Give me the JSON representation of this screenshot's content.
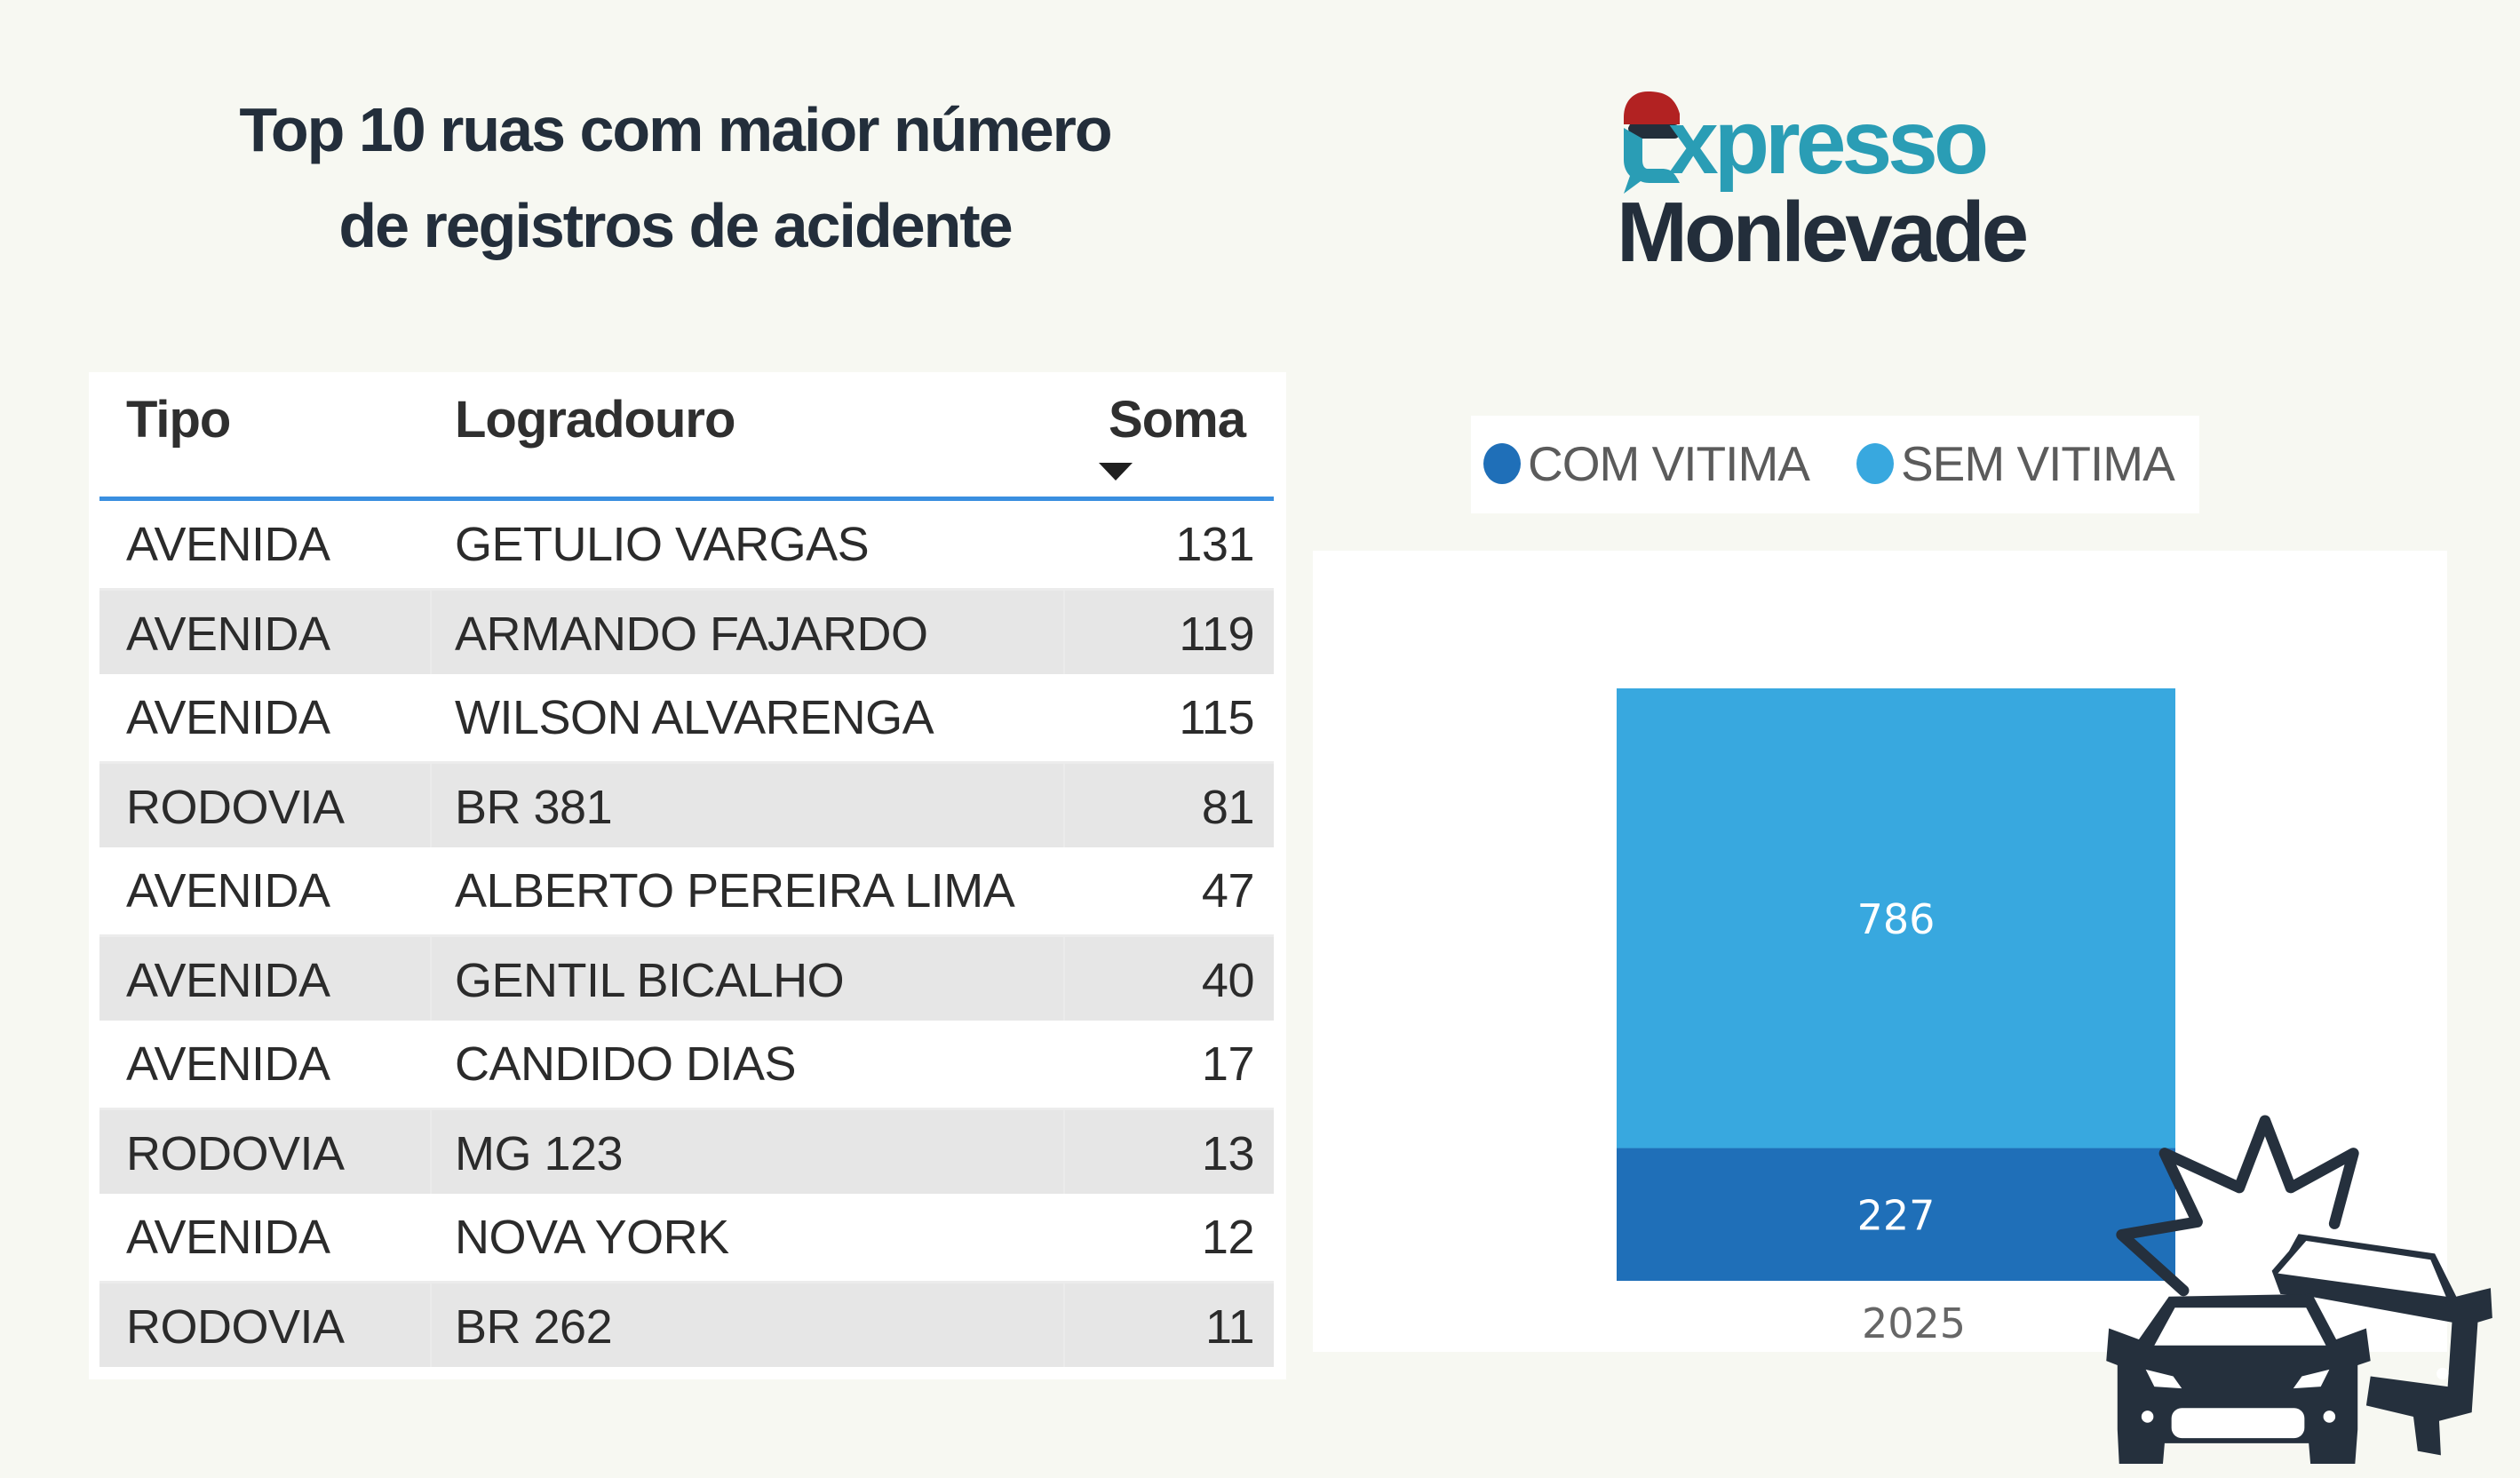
{
  "title": {
    "line1": "Top 10 ruas com maior número",
    "line2": "de registros de acidente"
  },
  "logo": {
    "line1": "xpresso",
    "line1_initial": "E",
    "line2": "Monlevade",
    "colors": {
      "red": "#b22222",
      "teal": "#2a9db5",
      "navy": "#232e3b"
    }
  },
  "table": {
    "columns": [
      "Tipo",
      "Logradouro",
      "Soma"
    ],
    "sort_icon": "sort-descending-icon",
    "rows": [
      {
        "tipo": "AVENIDA",
        "logradouro": "GETULIO VARGAS",
        "soma": "131"
      },
      {
        "tipo": "AVENIDA",
        "logradouro": "ARMANDO FAJARDO",
        "soma": "119"
      },
      {
        "tipo": "AVENIDA",
        "logradouro": "WILSON ALVARENGA",
        "soma": "115"
      },
      {
        "tipo": "RODOVIA",
        "logradouro": "BR 381",
        "soma": "81"
      },
      {
        "tipo": "AVENIDA",
        "logradouro": "ALBERTO PEREIRA LIMA",
        "soma": "47"
      },
      {
        "tipo": "AVENIDA",
        "logradouro": "GENTIL BICALHO",
        "soma": "40"
      },
      {
        "tipo": "AVENIDA",
        "logradouro": "CANDIDO DIAS",
        "soma": "17"
      },
      {
        "tipo": "RODOVIA",
        "logradouro": "MG 123",
        "soma": "13"
      },
      {
        "tipo": "AVENIDA",
        "logradouro": "NOVA YORK",
        "soma": "12"
      },
      {
        "tipo": "RODOVIA",
        "logradouro": "BR 262",
        "soma": "11"
      }
    ]
  },
  "chart_data": {
    "type": "bar",
    "stacked": true,
    "title": "",
    "xlabel": "",
    "ylabel": "",
    "categories": [
      "2025"
    ],
    "series": [
      {
        "name": "COM VITIMA",
        "values": [
          227
        ],
        "color": "#1f6fb8"
      },
      {
        "name": "SEM VITIMA",
        "values": [
          786
        ],
        "color": "#38a8df"
      }
    ],
    "ylim": [
      0,
      1013
    ],
    "grid": false,
    "legend": {
      "position": "top",
      "entries": [
        "COM VITIMA",
        "SEM VITIMA"
      ]
    },
    "data_labels": true
  },
  "decoration": {
    "icon": "car-crash-icon",
    "color": "#25303d"
  }
}
